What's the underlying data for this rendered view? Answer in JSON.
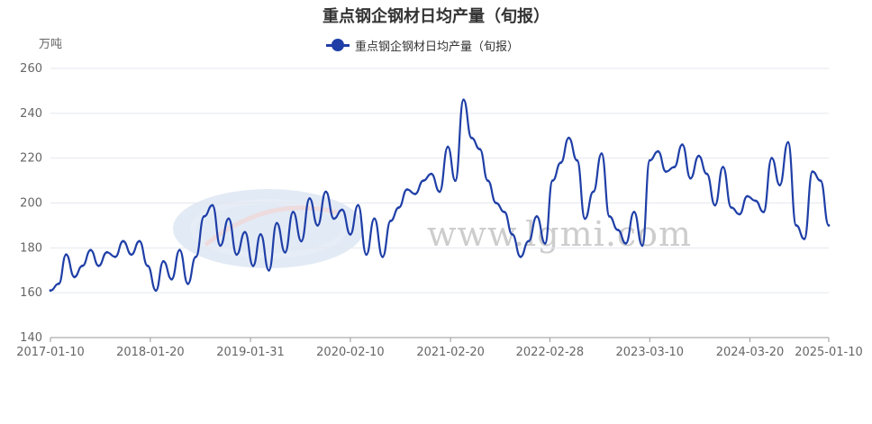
{
  "chart_data": {
    "type": "line",
    "title": "重点钢企钢材日均产量（旬报）",
    "ylabel": "万吨",
    "series_name": "重点钢企钢材日均产量（旬报）",
    "ylim": [
      140,
      260
    ],
    "y_ticks": [
      "140",
      "160",
      "180",
      "200",
      "220",
      "240",
      "260"
    ],
    "x_ticks": [
      "2017-01-10",
      "2018-01-20",
      "2019-01-31",
      "2020-02-10",
      "2021-02-20",
      "2022-02-28",
      "2023-03-10",
      "2024-03-20",
      "2025-01-10"
    ],
    "grid": true,
    "legend_position": "top-center",
    "line_color": "#1f3fa7",
    "x": [
      "2017-01-10",
      "2017-02-10",
      "2017-03-10",
      "2017-04-10",
      "2017-05-10",
      "2017-06-10",
      "2017-07-10",
      "2017-08-10",
      "2017-09-10",
      "2017-10-10",
      "2017-11-10",
      "2017-12-10",
      "2018-01-10",
      "2018-02-10",
      "2018-03-10",
      "2018-04-10",
      "2018-05-10",
      "2018-06-10",
      "2018-07-10",
      "2018-08-10",
      "2018-09-10",
      "2018-10-10",
      "2018-11-10",
      "2018-12-10",
      "2019-01-10",
      "2019-02-10",
      "2019-03-10",
      "2019-04-10",
      "2019-05-10",
      "2019-06-10",
      "2019-07-10",
      "2019-08-10",
      "2019-09-10",
      "2019-10-10",
      "2019-11-10",
      "2019-12-10",
      "2020-01-10",
      "2020-02-10",
      "2020-03-10",
      "2020-04-10",
      "2020-05-10",
      "2020-06-10",
      "2020-07-10",
      "2020-08-10",
      "2020-09-10",
      "2020-10-10",
      "2020-11-10",
      "2020-12-10",
      "2021-01-10",
      "2021-02-10",
      "2021-03-10",
      "2021-04-10",
      "2021-05-10",
      "2021-06-10",
      "2021-07-10",
      "2021-08-10",
      "2021-09-10",
      "2021-10-10",
      "2021-11-10",
      "2021-12-10",
      "2022-01-10",
      "2022-02-10",
      "2022-03-10",
      "2022-04-10",
      "2022-05-10",
      "2022-06-10",
      "2022-07-10",
      "2022-08-10",
      "2022-09-10",
      "2022-10-10",
      "2022-11-10",
      "2022-12-10",
      "2023-01-10",
      "2023-02-10",
      "2023-03-10",
      "2023-04-10",
      "2023-05-10",
      "2023-06-10",
      "2023-07-10",
      "2023-08-10",
      "2023-09-10",
      "2023-10-10",
      "2023-11-10",
      "2023-12-10",
      "2024-01-10",
      "2024-02-10",
      "2024-03-10",
      "2024-04-10",
      "2024-05-10",
      "2024-06-10",
      "2024-07-10",
      "2024-08-10",
      "2024-09-10",
      "2024-10-10",
      "2024-11-10",
      "2024-12-10",
      "2025-01-10"
    ],
    "values": [
      161,
      164,
      177,
      167,
      172,
      179,
      172,
      178,
      176,
      183,
      177,
      183,
      172,
      161,
      174,
      166,
      179,
      164,
      176,
      194,
      199,
      181,
      193,
      177,
      187,
      172,
      186,
      170,
      191,
      178,
      196,
      183,
      202,
      190,
      205,
      193,
      197,
      186,
      199,
      177,
      193,
      176,
      192,
      198,
      206,
      204,
      210,
      213,
      205,
      225,
      210,
      246,
      229,
      224,
      210,
      200,
      196,
      186,
      176,
      183,
      194,
      182,
      210,
      218,
      229,
      219,
      193,
      205,
      222,
      194,
      188,
      182,
      196,
      181,
      219,
      223,
      214,
      216,
      226,
      211,
      221,
      213,
      199,
      216,
      198,
      195,
      203,
      201,
      196,
      220,
      208,
      227,
      190,
      184,
      214,
      210,
      190
    ]
  }
}
